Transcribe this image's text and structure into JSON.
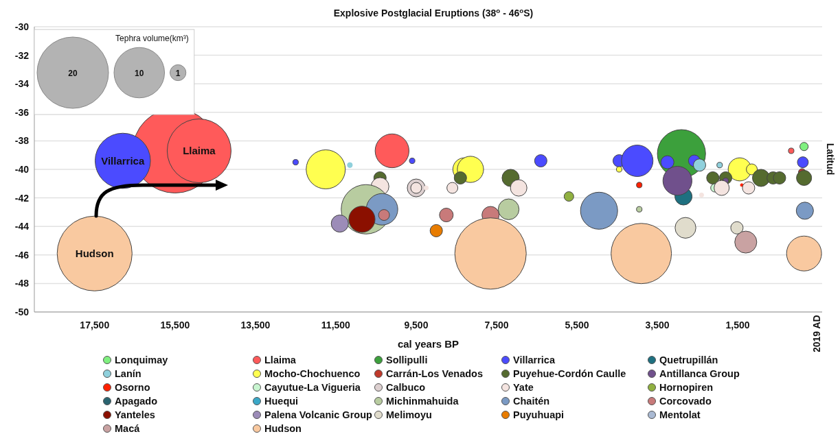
{
  "chart_data": {
    "type": "bubble",
    "title": "Explosive Postglacial Eruptions (38$^{o}$ - 46$^{o}$S)",
    "xlabel": "cal years BP",
    "ylabel": "Latitud",
    "legend_title": "Tephra volume(km³)",
    "size_legend": [
      20,
      10,
      1
    ],
    "xlim": [
      19000,
      -600
    ],
    "xticks": [
      {
        "value": 17500,
        "label": "17,500"
      },
      {
        "value": 15500,
        "label": "15,500"
      },
      {
        "value": 13500,
        "label": "13,500"
      },
      {
        "value": 11500,
        "label": "11,500"
      },
      {
        "value": 9500,
        "label": "9,500"
      },
      {
        "value": 7500,
        "label": "7,500"
      },
      {
        "value": 5500,
        "label": "5,500"
      },
      {
        "value": 3500,
        "label": "3,500"
      },
      {
        "value": 1500,
        "label": "1,500"
      }
    ],
    "ylim": [
      -50,
      -30
    ],
    "yticks": [
      -50,
      -48,
      -46,
      -44,
      -42,
      -40,
      -38,
      -36,
      -34,
      -32,
      -30
    ],
    "grid": "y",
    "legend": "bottom",
    "annotations": [
      {
        "text": "Hudson",
        "x": 17500,
        "y": -45.9
      },
      {
        "text": "Villarrica",
        "x": 16800,
        "y": -39.4
      },
      {
        "text": "Llaima",
        "x": 14900,
        "y": -38.7
      },
      "2019 AD"
    ],
    "series": [
      {
        "name": "Lonquimay",
        "color": "#7ff07f",
        "x": [
          -150
        ],
        "values": [
          -38.4
        ],
        "sizes": [
          0.27
        ]
      },
      {
        "name": "Llaima",
        "color": "#ff5a5a",
        "x": [
          15500,
          14900,
          10100,
          170
        ],
        "values": [
          -38.7,
          -38.7,
          -38.7,
          -38.7
        ],
        "sizes": [
          28,
          16,
          4.5,
          0.12
        ]
      },
      {
        "name": "Sollipulli",
        "color": "#3ca03c",
        "x": [
          2900
        ],
        "values": [
          -38.9
        ],
        "sizes": [
          9.1
        ]
      },
      {
        "name": "Villarrica",
        "color": "#4b4bff",
        "x": [
          16800,
          12500,
          9600,
          6400,
          4450,
          4000,
          3250,
          2580,
          -120
        ],
        "values": [
          -39.4,
          -39.5,
          -39.4,
          -39.4,
          -39.4,
          -39.4,
          -39.5,
          -39.4,
          -39.5
        ],
        "sizes": [
          12,
          0.12,
          0.12,
          0.6,
          0.6,
          3.9,
          0.67,
          0.53,
          0.47
        ]
      },
      {
        "name": "Quetrupillán",
        "color": "#1e7080",
        "x": [
          2850
        ],
        "values": [
          -41.9
        ],
        "sizes": [
          1.16
        ]
      },
      {
        "name": "Lanín",
        "color": "#8fd0dc",
        "x": [
          11150,
          2450,
          1950
        ],
        "values": [
          -39.7,
          -39.7,
          -39.7
        ],
        "sizes": [
          0.1,
          0.6,
          0.12
        ]
      },
      {
        "name": "Mocho-Chochuenco",
        "color": "#ffff50",
        "x": [
          11750,
          8300,
          8150,
          4450,
          1450,
          1150
        ],
        "values": [
          -40.0,
          -40.0,
          -40.0,
          -40.0,
          -40.0,
          -40.0
        ],
        "sizes": [
          6,
          2.1,
          2.7,
          0.12,
          2.1,
          0.47
        ]
      },
      {
        "name": "Carrán-Los Venados",
        "color": "#c0392b",
        "x": [
          -100
        ],
        "values": [
          -40.2
        ],
        "sizes": [
          0.2
        ]
      },
      {
        "name": "Puyehue-Cordón Caulle",
        "color": "#556b2f",
        "x": [
          10400,
          8400,
          7150,
          2120,
          1800,
          920,
          620,
          460,
          -150
        ],
        "values": [
          -40.6,
          -40.6,
          -40.6,
          -40.6,
          -40.6,
          -40.6,
          -40.6,
          -40.6,
          -40.6
        ],
        "sizes": [
          0.6,
          0.6,
          1.16,
          0.6,
          0.6,
          1.16,
          0.6,
          0.6,
          0.9
        ]
      },
      {
        "name": "Antillanca Group",
        "color": "#70508c",
        "x": [
          3000,
          1800
        ],
        "values": [
          -40.8,
          -40.8
        ],
        "sizes": [
          3.3,
          0.12
        ]
      },
      {
        "name": "Osorno",
        "color": "#ff2000",
        "x": [
          3950,
          1400
        ],
        "values": [
          -41.1,
          -41.1
        ],
        "sizes": [
          0.12,
          0.03
        ]
      },
      {
        "name": "Cayutue-La Vigueria",
        "color": "#c8f5d0",
        "x": [
          2070
        ],
        "values": [
          -41.3
        ],
        "sizes": [
          0.27
        ]
      },
      {
        "name": "Calbuco",
        "color": "#ddd0d0",
        "x": [
          9500
        ],
        "values": [
          -41.3
        ],
        "sizes": [
          1.25
        ]
      },
      {
        "name": "Yate",
        "color": "#f4e4e0",
        "x": [
          10400,
          9500,
          9250,
          8600,
          6950,
          2400,
          1900,
          1230
        ],
        "values": [
          -41.2,
          -41.3,
          -41.3,
          -41.3,
          -41.3,
          -41.8,
          -41.3,
          -41.3
        ],
        "sizes": [
          1.25,
          0.47,
          0.07,
          0.47,
          1.07,
          0.07,
          0.9,
          0.6
        ]
      },
      {
        "name": "Hornopiren",
        "color": "#90b040",
        "x": [
          5700
        ],
        "values": [
          -41.9
        ],
        "sizes": [
          0.36
        ]
      },
      {
        "name": "Apagado",
        "color": "#2a6470"
      },
      {
        "name": "Huequi",
        "color": "#3aa8c8"
      },
      {
        "name": "Michinmahuida",
        "color": "#b8cca0",
        "x": [
          10750,
          7200,
          3950
        ],
        "values": [
          -42.8,
          -42.8,
          -42.8
        ],
        "sizes": [
          9.6,
          1.7,
          0.12
        ]
      },
      {
        "name": "Chaitén",
        "color": "#7b9ac4",
        "x": [
          10350,
          4950,
          -170
        ],
        "values": [
          -42.8,
          -42.9,
          -42.9
        ],
        "sizes": [
          3.9,
          5.4,
          1.16
        ]
      },
      {
        "name": "Corcovado",
        "color": "#c87a7a",
        "x": [
          10300,
          8750,
          7650
        ],
        "values": [
          -43.2,
          -43.2,
          -43.2
        ],
        "sizes": [
          0.47,
          0.74,
          1.16
        ]
      },
      {
        "name": "Yanteles",
        "color": "#8b1000",
        "x": [
          10850
        ],
        "values": [
          -43.5
        ],
        "sizes": [
          2.7
        ]
      },
      {
        "name": "Palena Volcanic Group",
        "color": "#9c8cb8",
        "x": [
          11400
        ],
        "values": [
          -43.8
        ],
        "sizes": [
          1.16
        ]
      },
      {
        "name": "Melimoyu",
        "color": "#e0dccc",
        "x": [
          2800,
          1520
        ],
        "values": [
          -44.1,
          -44.1
        ],
        "sizes": [
          1.7,
          0.6
        ]
      },
      {
        "name": "Puyuhuapi",
        "color": "#e87c00",
        "x": [
          9000
        ],
        "values": [
          -44.3
        ],
        "sizes": [
          0.6
        ]
      },
      {
        "name": "Mentolat",
        "color": "#a9b9d2"
      },
      {
        "name": "Macá",
        "color": "#c9a2a2",
        "x": [
          1300
        ],
        "values": [
          -45.1
        ],
        "sizes": [
          1.9
        ]
      },
      {
        "name": "Hudson",
        "color": "#f9c9a0",
        "x": [
          17500,
          7650,
          3900,
          -150
        ],
        "values": [
          -45.9,
          -45.9,
          -45.9,
          -45.9
        ],
        "sizes": [
          22,
          20,
          14.3,
          4.8
        ]
      }
    ]
  }
}
